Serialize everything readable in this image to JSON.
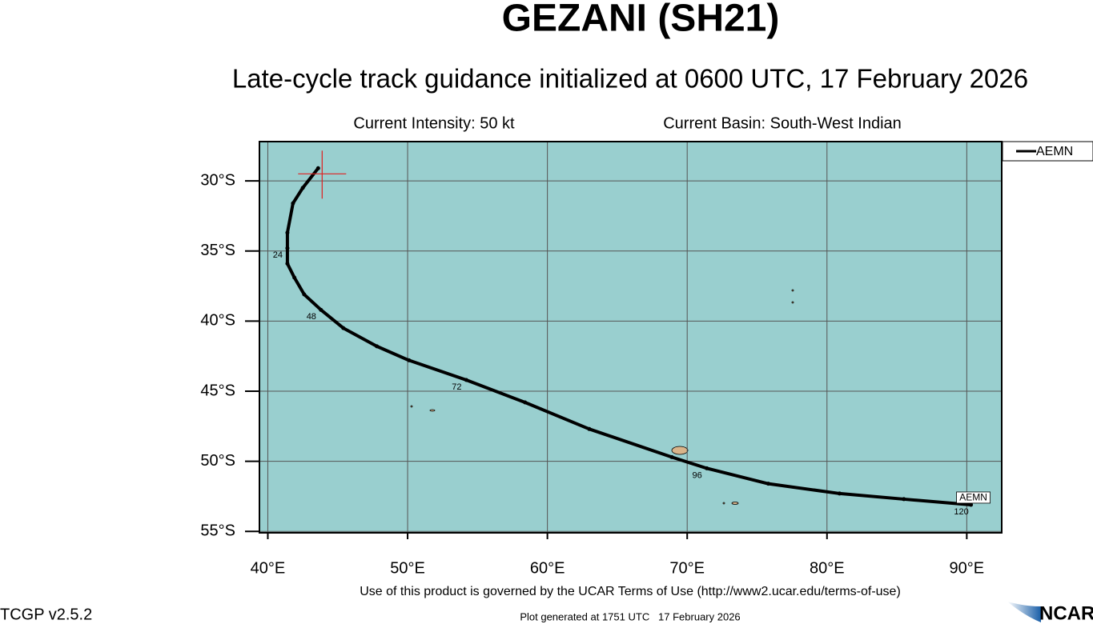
{
  "chart_data": {
    "type": "line",
    "title": "GEZANI (SH21)",
    "subtitle": "Late-cycle track guidance initialized at 0600 UTC, 17 February 2026",
    "intensity": "Current Intensity: 50 kt",
    "basin": "Current Basin: South-West Indian",
    "xlim": [
      39.4,
      92.5
    ],
    "ylim": [
      -55.1,
      -27.2
    ],
    "xticks": [
      {
        "value": 40,
        "label": "40°E"
      },
      {
        "value": 50,
        "label": "50°E"
      },
      {
        "value": 60,
        "label": "60°E"
      },
      {
        "value": 70,
        "label": "70°E"
      },
      {
        "value": 80,
        "label": "80°E"
      },
      {
        "value": 90,
        "label": "90°E"
      }
    ],
    "yticks": [
      {
        "value": -30,
        "label": "30°S"
      },
      {
        "value": -35,
        "label": "35°S"
      },
      {
        "value": -40,
        "label": "40°S"
      },
      {
        "value": -45,
        "label": "45°S"
      },
      {
        "value": -50,
        "label": "50°S"
      },
      {
        "value": -55,
        "label": "55°S"
      }
    ],
    "grid": true,
    "legend": "outside-top-right",
    "background": "#99cfcf",
    "series": [
      {
        "name": "AEMN",
        "color": "#000000",
        "x": [
          43.6,
          42.5,
          41.8,
          41.4,
          41.4,
          41.4,
          41.9,
          42.6,
          43.8,
          45.4,
          47.8,
          50.1,
          54.2,
          58.4,
          63.0,
          68.9,
          71.4,
          75.8,
          80.9,
          85.5,
          90.3
        ],
        "values": [
          -29.1,
          -30.5,
          -31.6,
          -33.7,
          -34.8,
          -35.9,
          -36.9,
          -38.1,
          -39.2,
          -40.5,
          -41.8,
          -42.8,
          -44.2,
          -45.8,
          -47.7,
          -49.7,
          -50.5,
          -51.6,
          -52.3,
          -52.7,
          -53.1
        ]
      }
    ],
    "annotations": [
      {
        "text": "24",
        "x": 41.4,
        "y": -34.8
      },
      {
        "text": "48",
        "x": 43.8,
        "y": -39.2
      },
      {
        "text": "72",
        "x": 54.2,
        "y": -44.2
      },
      {
        "text": "96",
        "x": 71.4,
        "y": -50.5
      },
      {
        "text": "120",
        "x": 90.3,
        "y": -53.1
      }
    ]
  },
  "footer": {
    "terms": "Use of this product is governed by the UCAR Terms of Use (http://www2.ucar.edu/terms-of-use)",
    "version": "TCGP v2.5.2",
    "generated": "Plot generated at 1751 UTC   17 February 2026",
    "logo": "NCAR"
  }
}
